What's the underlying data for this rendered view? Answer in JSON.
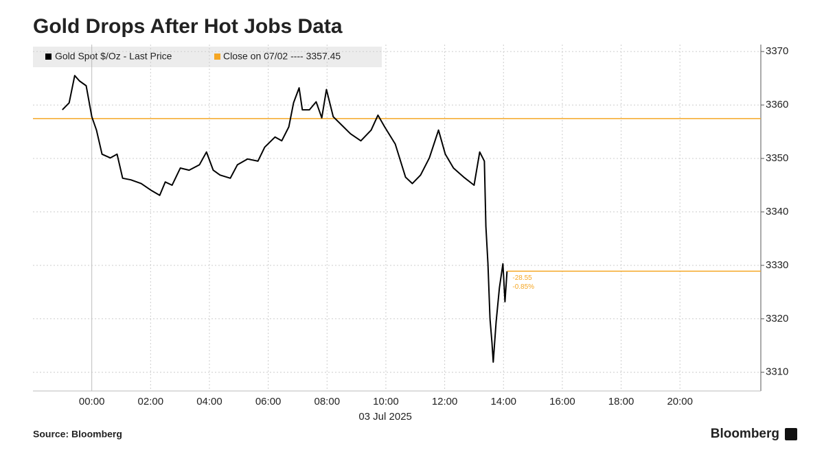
{
  "chart_data": {
    "type": "line",
    "title": "Gold Drops After Hot Jobs Data",
    "x_axis_label": "03 Jul 2025",
    "x": [
      -1.0,
      -0.77,
      -0.58,
      -0.42,
      -0.19,
      0,
      0.16,
      0.35,
      0.63,
      0.86,
      1.05,
      1.33,
      1.68,
      2.03,
      2.31,
      2.5,
      2.73,
      3.01,
      3.31,
      3.66,
      3.9,
      4.13,
      4.36,
      4.71,
      4.95,
      5.3,
      5.65,
      5.88,
      6.23,
      6.46,
      6.7,
      6.86,
      7.05,
      7.16,
      7.4,
      7.63,
      7.82,
      7.98,
      8.21,
      8.56,
      8.8,
      9.15,
      9.5,
      9.73,
      9.96,
      10.32,
      10.67,
      10.9,
      11.18,
      11.48,
      11.79,
      12.02,
      12.3,
      12.65,
      13.0,
      13.19,
      13.35,
      13.4,
      13.47,
      13.54,
      13.61,
      13.65,
      13.75,
      13.86,
      13.98,
      14.05,
      14.12
    ],
    "series": [
      {
        "name": "Gold Spot $/Oz - Last Price",
        "color": "#000000",
        "values": [
          3359.1,
          3360.4,
          3365.5,
          3364.5,
          3363.6,
          3357.8,
          3355.3,
          3350.8,
          3350.1,
          3350.8,
          3346.3,
          3346.0,
          3345.3,
          3344.0,
          3343.1,
          3345.6,
          3345.0,
          3348.2,
          3347.8,
          3348.8,
          3351.2,
          3347.8,
          3346.9,
          3346.3,
          3348.8,
          3349.9,
          3349.5,
          3352.1,
          3354.0,
          3353.3,
          3355.9,
          3360.4,
          3363.2,
          3359.1,
          3359.1,
          3360.6,
          3357.6,
          3362.9,
          3357.8,
          3355.9,
          3354.6,
          3353.3,
          3355.3,
          3358.1,
          3355.9,
          3352.7,
          3346.5,
          3345.3,
          3346.9,
          3350.1,
          3355.3,
          3350.8,
          3348.2,
          3346.5,
          3345.0,
          3351.2,
          3349.5,
          3337.3,
          3330.3,
          3320.0,
          3315.5,
          3311.9,
          3319.4,
          3325.8,
          3330.3,
          3323.2,
          3328.9
        ]
      }
    ],
    "reference_line": {
      "label": "Close on 07/02 ---- 3357.45",
      "value": 3357.45,
      "color": "#f5a623"
    },
    "change_label": "-28.55",
    "change_pct_label": "-0.85%",
    "xlim": [
      -2,
      22.75
    ],
    "xticks": [
      {
        "value": 0,
        "label": "00:00"
      },
      {
        "value": 2,
        "label": "02:00"
      },
      {
        "value": 4,
        "label": "04:00"
      },
      {
        "value": 6,
        "label": "06:00"
      },
      {
        "value": 8,
        "label": "08:00"
      },
      {
        "value": 10,
        "label": "10:00"
      },
      {
        "value": 12,
        "label": "12:00"
      },
      {
        "value": 14,
        "label": "14:00"
      },
      {
        "value": 16,
        "label": "16:00"
      },
      {
        "value": 18,
        "label": "18:00"
      },
      {
        "value": 20,
        "label": "20:00"
      }
    ],
    "ylim": [
      3306.5,
      3371.3
    ],
    "yticks": [
      3310,
      3320,
      3330,
      3340,
      3350,
      3360,
      3370
    ],
    "grid": true,
    "source": "Source: Bloomberg",
    "brand": "Bloomberg"
  }
}
